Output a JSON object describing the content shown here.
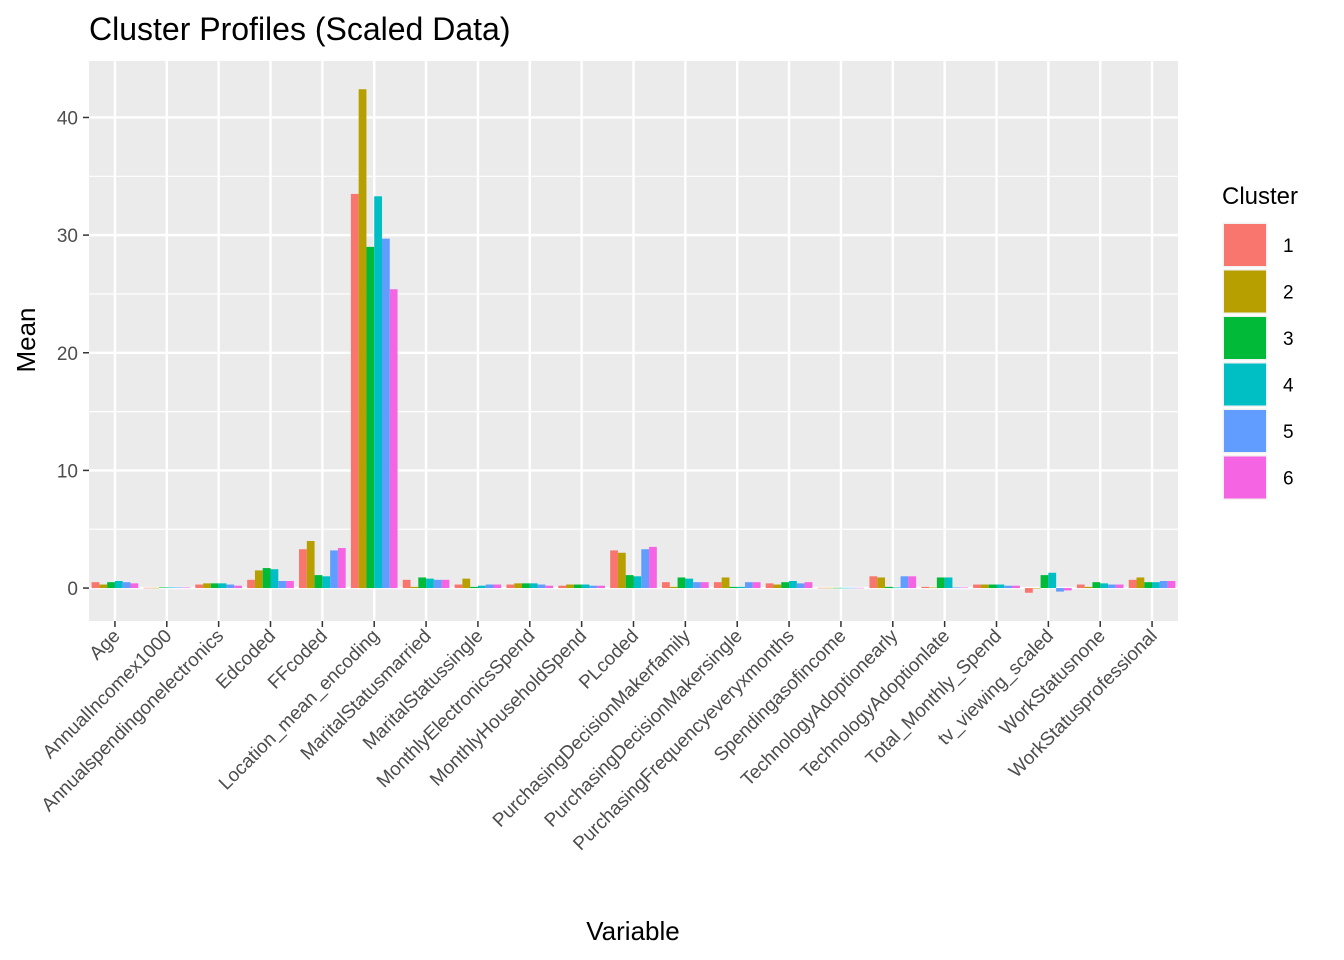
{
  "chart_data": {
    "type": "bar",
    "title": "Cluster Profiles (Scaled Data)",
    "xlabel": "Variable",
    "ylabel": "Mean",
    "ylim": [
      -2.8,
      44.8
    ],
    "yticks": [
      0,
      10,
      20,
      30,
      40
    ],
    "grid": true,
    "legend": {
      "title": "Cluster",
      "placement": "right"
    },
    "colors": [
      "#F8766D",
      "#B79F00",
      "#00BA38",
      "#00BFC4",
      "#619CFF",
      "#F564E3"
    ],
    "categories": [
      "Age",
      "AnnualIncomex1000",
      "Annualspendingonelectronics",
      "Edcoded",
      "FFcoded",
      "Location_mean_encoding",
      "MaritalStatusmarried",
      "MaritalStatussingle",
      "MonthlyElectronicsSpend",
      "MonthlyHouseholdSpend",
      "PLcoded",
      "PurchasingDecisionMakerfamily",
      "PurchasingDecisionMakersingle",
      "PurchasingFrequencyeveryxmonths",
      "Spendingasofincome",
      "TechnologyAdoptionearly",
      "TechnologyAdoptionlate",
      "Total_Monthly_Spend",
      "tv_viewing_scaled",
      "WorkStatusnone",
      "WorkStatusprofessional"
    ],
    "series": [
      {
        "name": "1",
        "values": [
          0.5,
          0.02,
          0.3,
          0.7,
          3.3,
          33.5,
          0.7,
          0.3,
          0.3,
          0.2,
          3.2,
          0.5,
          0.5,
          0.4,
          0.02,
          1.0,
          0.1,
          0.3,
          -0.4,
          0.3,
          0.7
        ]
      },
      {
        "name": "2",
        "values": [
          0.3,
          0.02,
          0.4,
          1.5,
          4.0,
          42.4,
          0.1,
          0.8,
          0.4,
          0.3,
          3.0,
          0.1,
          0.9,
          0.3,
          0.02,
          0.9,
          0.05,
          0.3,
          0.0,
          0.1,
          0.9
        ]
      },
      {
        "name": "3",
        "values": [
          0.5,
          0.05,
          0.4,
          1.7,
          1.1,
          29.0,
          0.9,
          0.1,
          0.4,
          0.3,
          1.1,
          0.9,
          0.1,
          0.5,
          0.02,
          0.1,
          0.9,
          0.3,
          1.1,
          0.5,
          0.5
        ]
      },
      {
        "name": "4",
        "values": [
          0.6,
          0.05,
          0.4,
          1.6,
          1.0,
          33.3,
          0.8,
          0.2,
          0.4,
          0.3,
          1.0,
          0.8,
          0.1,
          0.6,
          0.02,
          0.05,
          0.9,
          0.3,
          1.3,
          0.4,
          0.5
        ]
      },
      {
        "name": "5",
        "values": [
          0.5,
          0.05,
          0.3,
          0.6,
          3.2,
          29.7,
          0.7,
          0.3,
          0.3,
          0.2,
          3.3,
          0.5,
          0.5,
          0.4,
          0.02,
          1.0,
          0.05,
          0.2,
          -0.3,
          0.3,
          0.6
        ]
      },
      {
        "name": "6",
        "values": [
          0.4,
          0.05,
          0.2,
          0.6,
          3.4,
          25.4,
          0.7,
          0.3,
          0.2,
          0.2,
          3.5,
          0.5,
          0.5,
          0.5,
          0.02,
          1.0,
          0.05,
          0.2,
          -0.2,
          0.3,
          0.6
        ]
      }
    ]
  }
}
